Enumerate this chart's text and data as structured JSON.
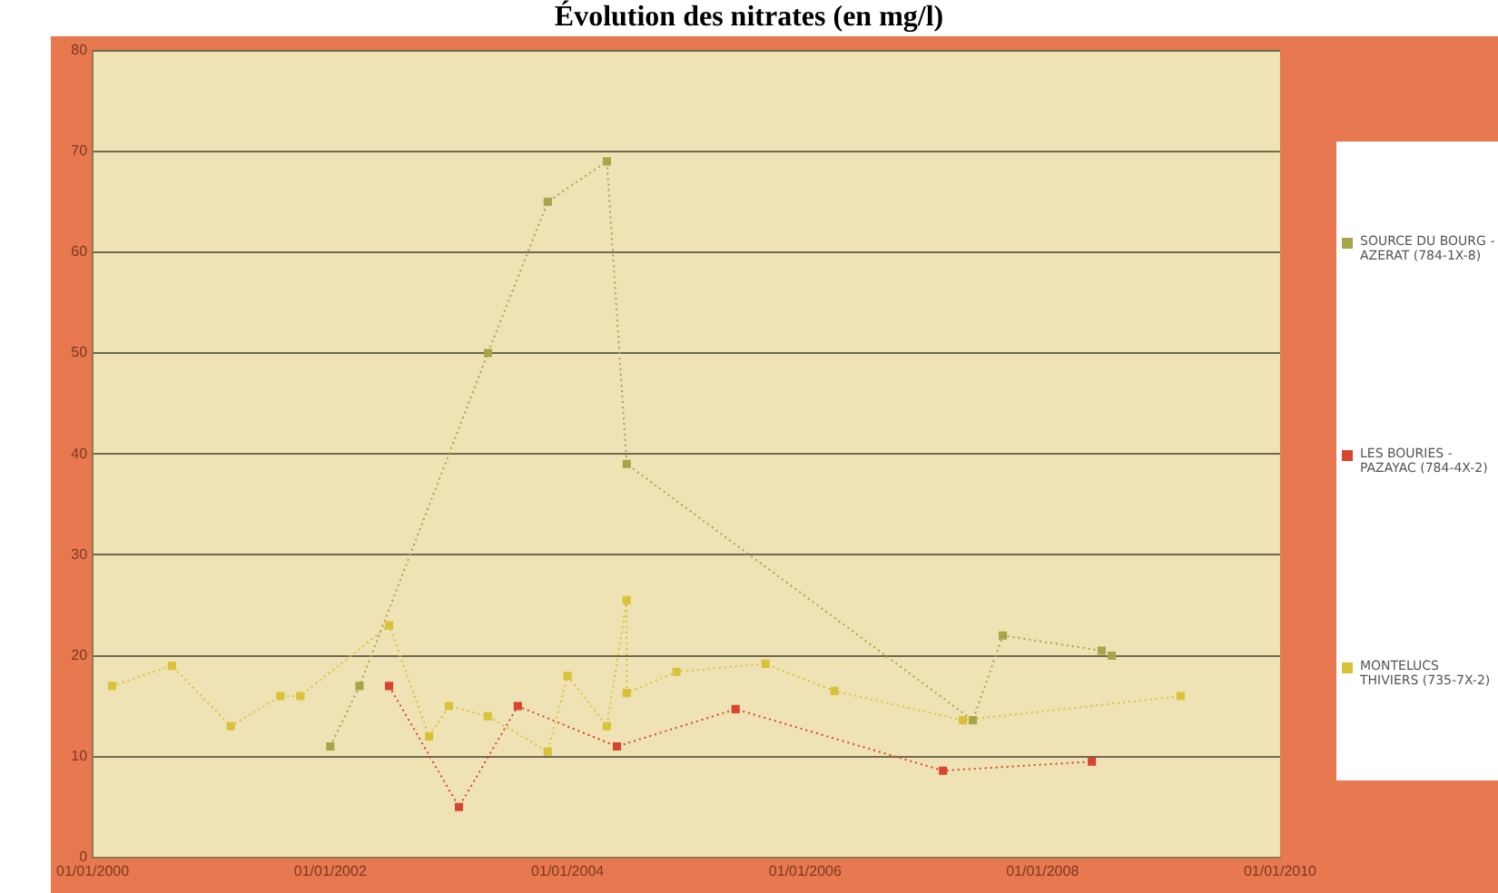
{
  "chart_data": {
    "type": "line",
    "title": "Évolution des nitrates (en mg/l)",
    "legend": "right",
    "grid": "y",
    "marker": "square",
    "line_style": "dotted",
    "xlim": [
      "2000-01-01",
      "2010-01-01"
    ],
    "xticks": [
      {
        "value": "2000-01-01",
        "label": "01/01/2000"
      },
      {
        "value": "2002-01-01",
        "label": "01/01/2002"
      },
      {
        "value": "2004-01-01",
        "label": "01/01/2004"
      },
      {
        "value": "2006-01-01",
        "label": "01/01/2006"
      },
      {
        "value": "2008-01-01",
        "label": "01/01/2008"
      },
      {
        "value": "2010-01-01",
        "label": "01/01/2010"
      }
    ],
    "ylim": [
      0,
      80
    ],
    "yticks": [
      0,
      10,
      20,
      30,
      40,
      50,
      60,
      70,
      80
    ],
    "series": [
      {
        "name": "SOURCE DU BOURG - AZERAT (784-1X-8)",
        "color": "#a8a44a",
        "x": [
          "2002-01",
          "2002-04",
          "2003-05",
          "2003-11",
          "2004-05",
          "2004-07",
          "2007-06",
          "2007-09",
          "2008-07",
          "2008-08"
        ],
        "values": [
          11,
          17,
          50,
          65,
          69,
          39,
          13.6,
          22,
          20.5,
          20
        ]
      },
      {
        "name": "LES BOURIES - PAZAYAC (784-4X-2)",
        "color": "#d9442e",
        "x": [
          "2002-07",
          "2003-02",
          "2003-08",
          "2004-06",
          "2005-06",
          "2007-03",
          "2008-06"
        ],
        "values": [
          17,
          5,
          15,
          11,
          14.7,
          8.6,
          9.5
        ]
      },
      {
        "name": "MONTELUCS THIVIERS (735-7X-2)",
        "color": "#d8c23a",
        "x": [
          "2000-03",
          "2000-09",
          "2001-03",
          "2001-08",
          "2001-10",
          "2002-07",
          "2002-11",
          "2003-01",
          "2003-05",
          "2003-11",
          "2004-01",
          "2004-05",
          "2004-07",
          "2004-07",
          "2004-12",
          "2005-09",
          "2006-04",
          "2007-05",
          "2009-03"
        ],
        "values": [
          17,
          19,
          13,
          16,
          16,
          23,
          12,
          15,
          14,
          10.5,
          18,
          13,
          25.5,
          16.3,
          18.4,
          19.2,
          16.5,
          13.6,
          16
        ]
      }
    ]
  }
}
